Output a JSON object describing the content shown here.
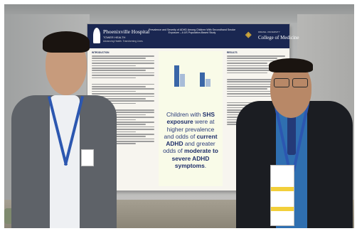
{
  "poster": {
    "hospital_name": "Phoenixville Hospital",
    "hospital_sub": "TOWER HEALTH",
    "hospital_tagline": "Advancing Health. Transforming Lives.",
    "title": "Prevalence and Severity of ADHD Among Children With Secondhand Smoke Exposure – A US Population-Based Study",
    "university_top": "DREXEL UNIVERSITY",
    "university_name": "College of Medicine",
    "left_section_title": "INTRODUCTION",
    "right_section_title": "RESULTS",
    "key_finding": {
      "t1": "Children with ",
      "b1": "SHS exposure",
      "t2": " were at higher prevalence and odds of ",
      "b2": "current ADHD",
      "t3": " and greater odds of ",
      "b3": "moderate to severe ADHD symptoms",
      "t4": "."
    }
  },
  "colors": {
    "poster_header": "#1a2751",
    "finding_text": "#2c3d7a",
    "bar_dark": "#3a66a7",
    "bar_light": "#a8bcd8",
    "lanyard": "#2c57b0",
    "suit_left": "#5e6268",
    "suit_right": "#1b1d22"
  }
}
